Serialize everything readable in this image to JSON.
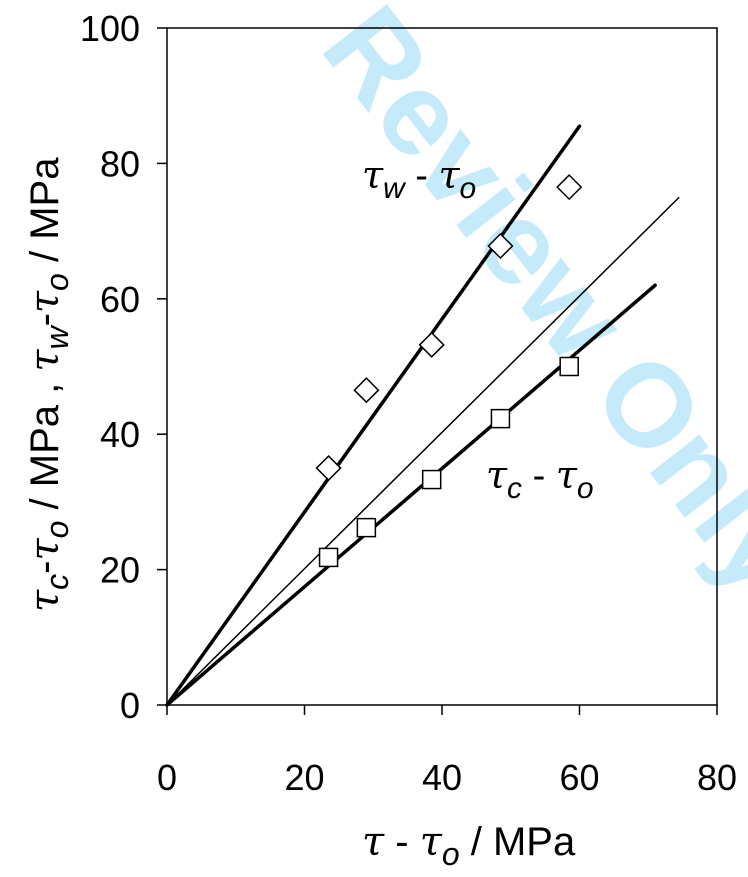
{
  "chart_data": {
    "type": "scatter",
    "xlim": [
      0,
      80
    ],
    "ylim": [
      0,
      100
    ],
    "x_ticks": [
      "0",
      "20",
      "40",
      "60",
      "80"
    ],
    "y_ticks": [
      "0",
      "20",
      "40",
      "60",
      "80",
      "100"
    ],
    "xlabel": {
      "greek": "τ",
      "mid": " - ",
      "greek2": "τ",
      "sub": "o",
      "unit": " / MPa"
    },
    "ylabel": {
      "g1": "τ",
      "s1": "c",
      "dash1": "-",
      "g2": "τ",
      "s2": "o",
      "mid": " / MPa , ",
      "g3": "τ",
      "s3": "w",
      "dash2": "-",
      "g4": "τ",
      "s4": "o",
      "unit": " / MPa"
    },
    "grid": false,
    "series": [
      {
        "marker": "diamond",
        "points": [
          [
            23.5,
            35
          ],
          [
            29,
            46.5
          ],
          [
            38.5,
            53.2
          ],
          [
            48.5,
            67.8
          ],
          [
            58.5,
            76.5
          ]
        ],
        "fit_line": [
          [
            0,
            0
          ],
          [
            60,
            85.5
          ]
        ]
      },
      {
        "marker": "square",
        "points": [
          [
            23.5,
            21.8
          ],
          [
            29,
            26.2
          ],
          [
            38.5,
            33.3
          ],
          [
            48.5,
            42.3
          ],
          [
            58.5,
            50
          ]
        ],
        "fit_line": [
          [
            0,
            0
          ],
          [
            71,
            62
          ]
        ]
      }
    ],
    "reference_line": [
      [
        0,
        0
      ],
      [
        74.5,
        75
      ]
    ],
    "annotations": [
      {
        "greek": "τ",
        "sub": "w",
        "mid": " - ",
        "greek2": "τ",
        "sub2": "o"
      },
      {
        "greek": "τ",
        "sub": "c",
        "mid": " - ",
        "greek2": "τ",
        "sub2": "o"
      }
    ],
    "watermark": "Review Only"
  }
}
